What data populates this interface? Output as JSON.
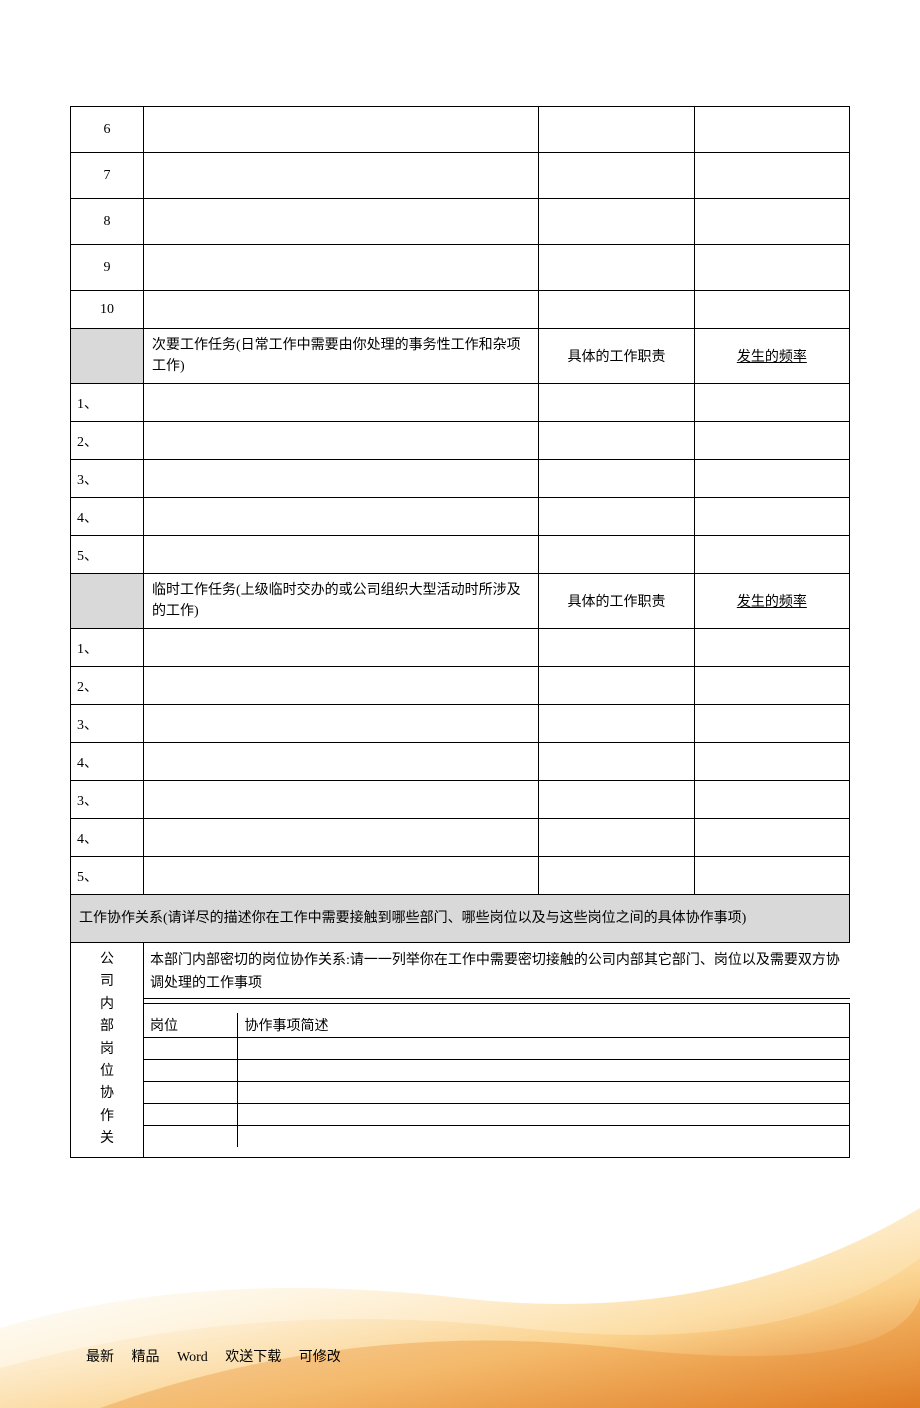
{
  "rows_top": [
    "6",
    "7",
    "8",
    "9",
    "10"
  ],
  "secondary_header": {
    "title": "次要工作任务(日常工作中需要由你处理的事务性工作和杂项工作)",
    "col2": "具体的工作职责",
    "col3": "发生的频率"
  },
  "secondary_rows": [
    "1、",
    "2、",
    "3、",
    "4、",
    "5、"
  ],
  "temp_header": {
    "title": "临时工作任务(上级临时交办的或公司组织大型活动时所涉及的工作)",
    "col2": "具体的工作职责",
    "col3": "发生的频率"
  },
  "temp_rows": [
    "1、",
    "2、",
    "3、",
    "4、",
    "3、",
    "4、",
    "5、"
  ],
  "coop_section_title": "工作协作关系(请详尽的描述你在工作中需要接触到哪些部门、哪些岗位以及与这些岗位之间的具体协作事项)",
  "coop_vertical_label": "公司内部岗位协作关",
  "coop_inner_desc": "本部门内部密切的岗位协作关系:请一一列举你在工作中需要密切接触的公司内部其它部门、岗位以及需要双方协调处理的工作事项",
  "coop_sub_headers": {
    "col1": "岗位",
    "col2": "协作事项简述"
  },
  "coop_sub_row_count": 5,
  "footer": {
    "t1": "最新",
    "t2": "精品",
    "t3": "Word",
    "t4": "欢送下载",
    "t5": "可修改"
  },
  "colors": {
    "header_bg": "#d9d9d9",
    "border": "#000000",
    "text": "#000000",
    "bg": "#ffffff"
  }
}
